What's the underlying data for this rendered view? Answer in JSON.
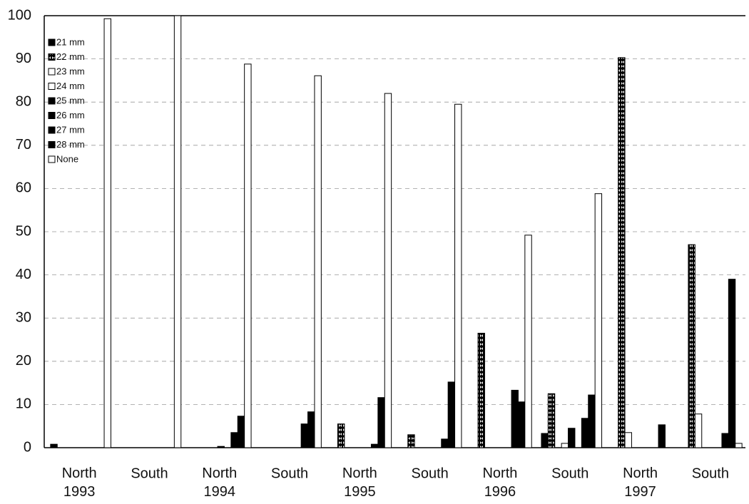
{
  "chart_data": {
    "type": "bar",
    "categories": [
      "North 1993",
      "South",
      "North 1994",
      "South",
      "North 1995",
      "South",
      "North 1996",
      "South",
      "North 1997",
      "South"
    ],
    "ylim": [
      0,
      100
    ],
    "yticks": [
      0,
      10,
      20,
      30,
      40,
      50,
      60,
      70,
      80,
      90,
      100
    ],
    "grid": true,
    "legend": "upper left",
    "series": [
      {
        "name": "21 mm",
        "color": "#000000",
        "values": [
          0.8,
          0,
          0,
          0,
          0,
          0,
          0,
          3.3,
          0,
          0
        ]
      },
      {
        "name": "22 mm",
        "color": "#000000",
        "pattern": "checker",
        "values": [
          0,
          0,
          0,
          0,
          5.5,
          3,
          26.5,
          12.5,
          90.3,
          47
        ]
      },
      {
        "name": "23 mm",
        "color": "#ffffff",
        "values": [
          0,
          0,
          0,
          0,
          0,
          0,
          0,
          0,
          3.5,
          7.8
        ]
      },
      {
        "name": "24 mm",
        "color": "#ffffff",
        "values": [
          0,
          0,
          0,
          0,
          0,
          0,
          0,
          1,
          0,
          0
        ]
      },
      {
        "name": "25 mm",
        "color": "#000000",
        "values": [
          0,
          0,
          0.3,
          0,
          0,
          0,
          0,
          4.5,
          0,
          0
        ]
      },
      {
        "name": "26 mm",
        "color": "#000000",
        "values": [
          0,
          0,
          0,
          0,
          0,
          0,
          0,
          0,
          0,
          0
        ]
      },
      {
        "name": "27 mm",
        "color": "#000000",
        "values": [
          0,
          0,
          3.5,
          5.5,
          0.8,
          2,
          13.3,
          6.8,
          0,
          3.3
        ]
      },
      {
        "name": "28 mm",
        "color": "#000000",
        "values": [
          0,
          0,
          7.3,
          8.3,
          11.6,
          15.2,
          10.6,
          12.2,
          5.3,
          39
        ]
      },
      {
        "name": "None",
        "color": "#ffffff",
        "values": [
          99.3,
          100,
          88.8,
          86.1,
          82,
          79.5,
          49.2,
          58.8,
          0,
          1
        ]
      }
    ]
  }
}
